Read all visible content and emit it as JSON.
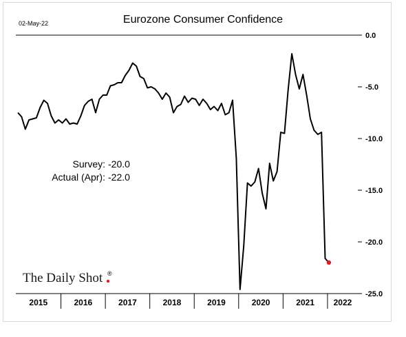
{
  "date_stamp": "02-May-22",
  "brand": {
    "name": "The Daily Shot",
    "reg_mark": "®",
    "accent_color": "#e02020"
  },
  "annotation": {
    "survey_label": "Survey:",
    "survey_value": "-20.0",
    "actual_label": "Actual (Apr):",
    "actual_value": "-22.0"
  },
  "chart_data": {
    "type": "line",
    "title": "Eurozone  Consumer Confidence",
    "xlabel": "",
    "ylabel": "",
    "ylim": [
      -25,
      0
    ],
    "yticks": [
      0,
      -5,
      -10,
      -15,
      -20,
      -25
    ],
    "ytick_labels": [
      "0.0",
      "-5.0",
      "-10.0",
      "-15.0",
      "-20.0",
      "-25.0"
    ],
    "y_axis_side": "right",
    "grid": false,
    "legend": "none",
    "line_color": "#000000",
    "last_point_color": "#e02020",
    "x_year_labels": [
      "2015",
      "2016",
      "2017",
      "2018",
      "2019",
      "2020",
      "2021",
      "2022"
    ],
    "x_start": "2015-01",
    "frequency": "monthly",
    "series": [
      {
        "values": [
          -7.5,
          -7.9,
          -9.1,
          -8.2,
          -8.1,
          -8.0,
          -7.0,
          -6.3,
          -6.6,
          -7.8,
          -8.5,
          -8.2,
          -8.5,
          -8.1,
          -8.6,
          -8.5,
          -8.6,
          -7.8,
          -6.8,
          -6.4,
          -6.2,
          -7.5,
          -6.2,
          -5.8,
          -5.8,
          -4.9,
          -4.8,
          -4.6,
          -4.6,
          -3.9,
          -3.4,
          -2.7,
          -3.0,
          -4.0,
          -4.2,
          -5.1,
          -5.0,
          -5.2,
          -5.6,
          -6.2,
          -5.6,
          -6.0,
          -7.5,
          -6.9,
          -6.7,
          -5.9,
          -6.5,
          -6.1,
          -6.2,
          -6.8,
          -6.2,
          -6.6,
          -7.2,
          -6.9,
          -7.3,
          -6.6,
          -7.7,
          -7.5,
          -6.3,
          -11.9,
          -24.6,
          -20.4,
          -14.3,
          -14.6,
          -14.2,
          -12.9,
          -15.3,
          -16.8,
          -12.4,
          -14.1,
          -13.2,
          -9.4,
          -9.5,
          -5.3,
          -1.8,
          -3.8,
          -5.2,
          -3.8,
          -5.8,
          -8.1,
          -9.2,
          -9.6,
          -9.4,
          -21.6,
          -22.0
        ]
      }
    ]
  }
}
